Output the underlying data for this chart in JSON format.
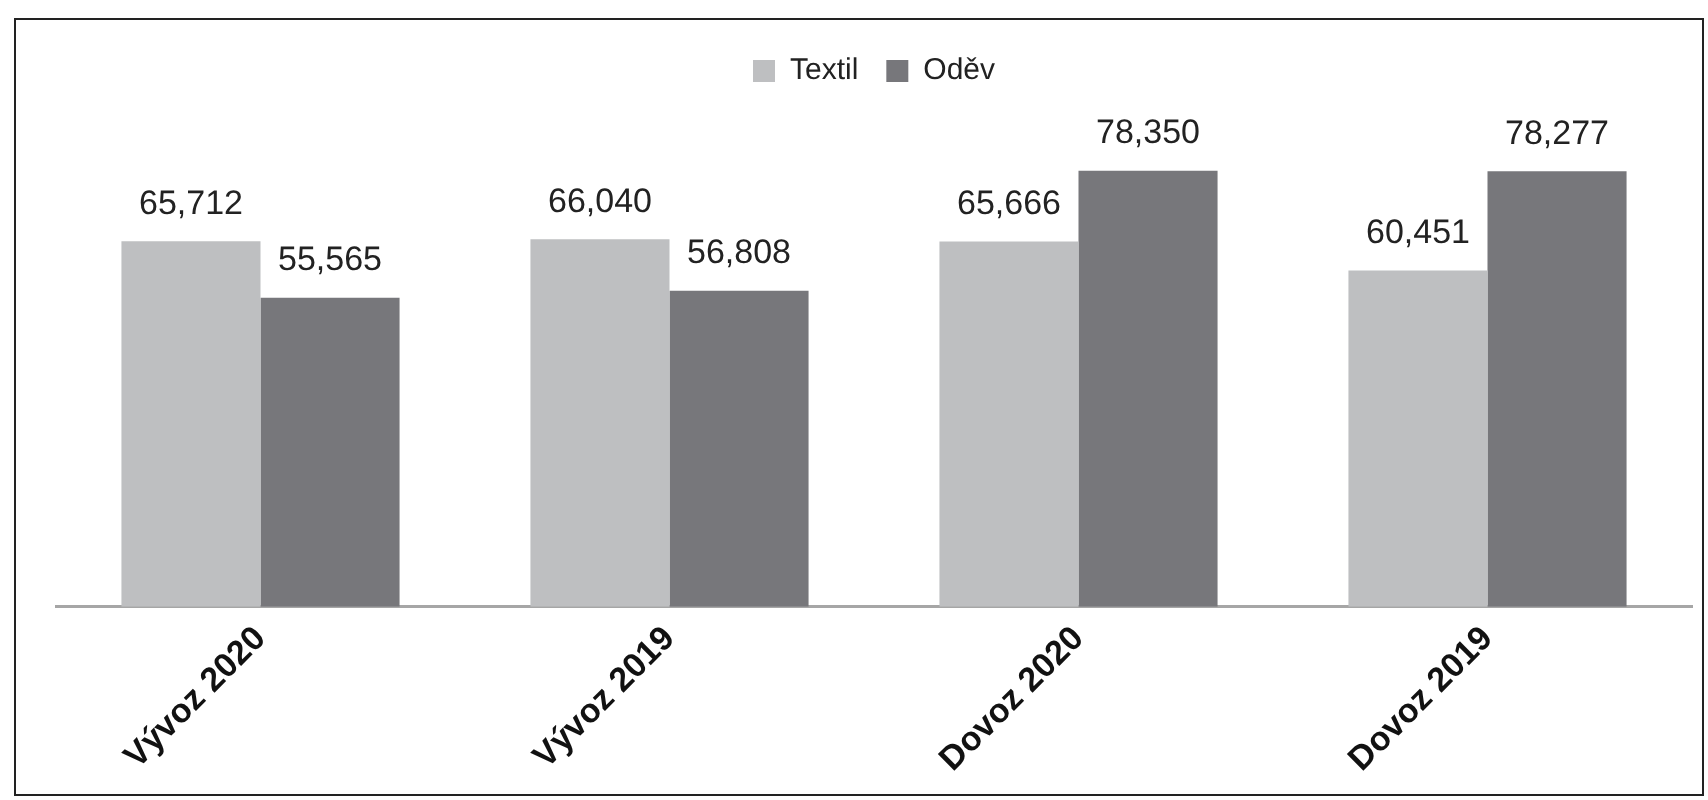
{
  "chart_data": {
    "type": "bar",
    "categories": [
      "Vývoz 2020",
      "Vývoz 2019",
      "Dovoz 2020",
      "Dovoz 2019"
    ],
    "series": [
      {
        "name": "Textil",
        "color": "#bebfc1",
        "values": [
          65712,
          66040,
          65666,
          60451
        ],
        "value_labels": [
          "65,712",
          "66,040",
          "65,666",
          "60,451"
        ]
      },
      {
        "name": "Oděv",
        "color": "#77777b",
        "values": [
          55565,
          56808,
          78350,
          78277
        ],
        "value_labels": [
          "55,565",
          "56,808",
          "78,350",
          "78,277"
        ]
      }
    ],
    "legend": "top",
    "grid": false,
    "tick_labels": "x"
  }
}
